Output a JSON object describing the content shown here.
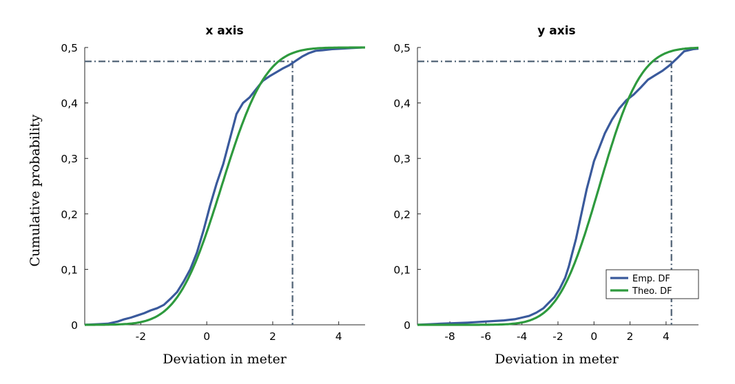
{
  "chart_data": [
    {
      "type": "line",
      "title": "x axis",
      "xlabel": "Deviation in meter",
      "ylabel": "Cumulative probability",
      "xlim": [
        -3.7,
        4.8
      ],
      "ylim": [
        0,
        0.5
      ],
      "xticks": [
        -2,
        0,
        2,
        4
      ],
      "xtick_labels": [
        "-2",
        "0",
        "2",
        "4"
      ],
      "yticks": [
        0,
        0.1,
        0.2,
        0.3,
        0.4,
        0.5
      ],
      "ytick_labels": [
        "0",
        "0,1",
        "0,2",
        "0,3",
        "0,4",
        "0,5"
      ],
      "reference": {
        "x": 2.6,
        "y": 0.475
      },
      "series": [
        {
          "name": "Emp. DF",
          "color": "#3a5a9c",
          "x": [
            -3.7,
            -3.0,
            -2.7,
            -2.5,
            -2.3,
            -2.1,
            -1.9,
            -1.7,
            -1.5,
            -1.3,
            -1.1,
            -0.9,
            -0.7,
            -0.5,
            -0.3,
            -0.1,
            0.1,
            0.3,
            0.5,
            0.7,
            0.9,
            1.1,
            1.3,
            1.5,
            1.7,
            1.9,
            2.1,
            2.3,
            2.5,
            2.7,
            2.9,
            3.1,
            3.3,
            3.5,
            3.8,
            4.1,
            4.4,
            4.7
          ],
          "y": [
            0.0,
            0.002,
            0.006,
            0.01,
            0.013,
            0.017,
            0.021,
            0.026,
            0.03,
            0.036,
            0.047,
            0.059,
            0.078,
            0.1,
            0.13,
            0.17,
            0.215,
            0.255,
            0.29,
            0.335,
            0.38,
            0.4,
            0.41,
            0.425,
            0.44,
            0.448,
            0.455,
            0.462,
            0.468,
            0.476,
            0.484,
            0.49,
            0.494,
            0.495,
            0.497,
            0.498,
            0.499,
            0.5
          ]
        },
        {
          "name": "Theo. DF",
          "color": "#2e9a3e",
          "dist": {
            "mean": 0.45,
            "sd": 1.05,
            "scale": 0.5
          },
          "x_range": [
            -3.7,
            4.8
          ]
        }
      ],
      "legend": null
    },
    {
      "type": "line",
      "title": "y axis",
      "xlabel": "Deviation in meter",
      "ylabel": "",
      "xlim": [
        -9.8,
        5.8
      ],
      "ylim": [
        0,
        0.5
      ],
      "xticks": [
        -8,
        -6,
        -4,
        -2,
        0,
        2,
        4
      ],
      "xtick_labels": [
        "-8",
        "-6",
        "-4",
        "-2",
        "0",
        "2",
        "4"
      ],
      "yticks": [
        0,
        0.1,
        0.2,
        0.3,
        0.4,
        0.5
      ],
      "ytick_labels": [
        "0",
        "0,1",
        "0,2",
        "0,3",
        "0,4",
        "0,5"
      ],
      "reference": {
        "x": 4.3,
        "y": 0.475
      },
      "series": [
        {
          "name": "Emp. DF",
          "color": "#3a5a9c",
          "x": [
            -9.8,
            -8.5,
            -7.0,
            -6.0,
            -5.0,
            -4.4,
            -4.0,
            -3.6,
            -3.2,
            -2.8,
            -2.5,
            -2.2,
            -1.9,
            -1.6,
            -1.4,
            -1.2,
            -1.0,
            -0.8,
            -0.6,
            -0.4,
            -0.2,
            0.0,
            0.3,
            0.6,
            1.0,
            1.4,
            1.8,
            2.2,
            2.6,
            3.0,
            3.4,
            3.8,
            4.2,
            4.6,
            5.0,
            5.5,
            5.8
          ],
          "y": [
            0.0,
            0.002,
            0.004,
            0.006,
            0.008,
            0.01,
            0.013,
            0.016,
            0.022,
            0.03,
            0.04,
            0.05,
            0.065,
            0.085,
            0.105,
            0.13,
            0.155,
            0.185,
            0.215,
            0.245,
            0.27,
            0.295,
            0.32,
            0.345,
            0.37,
            0.39,
            0.405,
            0.415,
            0.428,
            0.442,
            0.45,
            0.458,
            0.468,
            0.48,
            0.493,
            0.497,
            0.498
          ]
        },
        {
          "name": "Theo. DF",
          "color": "#2e9a3e",
          "dist": {
            "mean": 0.3,
            "sd": 1.8,
            "scale": 0.5
          },
          "x_range": [
            -9.8,
            5.8
          ]
        }
      ],
      "legend": {
        "position": "lower-right",
        "entries": [
          "Emp. DF",
          "Theo. DF"
        ]
      }
    }
  ],
  "colors": {
    "reference_line": "#5a6b7d",
    "axis": "#262626"
  }
}
